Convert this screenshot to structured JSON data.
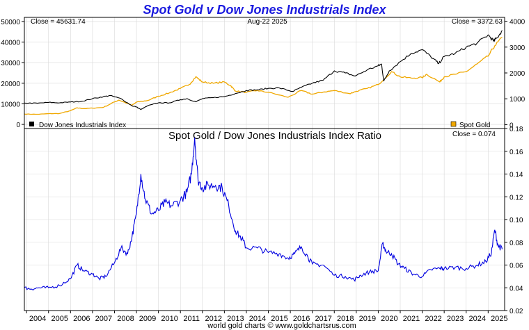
{
  "page_title": "Spot Gold v Dow Jones Industrials Index",
  "footer": "world gold charts © www.goldchartsrus.com",
  "colors": {
    "title": "#1a1adf",
    "dow": "#000000",
    "gold": "#f0a800",
    "ratio": "#0000e0",
    "grid": "#d8d8d8",
    "frame": "#000000"
  },
  "chart_data": [
    {
      "type": "line",
      "panel": "top",
      "title": "",
      "header_left": "Close = 45631.74",
      "header_center": "Aug-22  2025",
      "header_right": "Close = 3372.63",
      "x_tick_labels": [
        "2004",
        "2005",
        "2006",
        "2007",
        "2008",
        "2009",
        "2010",
        "2011",
        "2012",
        "2013",
        "2014",
        "2015",
        "2016",
        "2017",
        "2018",
        "2019",
        "2020",
        "2021",
        "2022",
        "2023",
        "2024",
        "2025"
      ],
      "xlim": [
        2003.9,
        2025.75
      ],
      "y_left": {
        "lim": [
          -2000,
          52000
        ],
        "ticks": [
          0,
          10000,
          20000,
          30000,
          40000,
          50000
        ],
        "tick_labels": [
          "0",
          "10000",
          "20000",
          "30000",
          "40000",
          "50000"
        ]
      },
      "y_right": {
        "lim": [
          -150,
          4150
        ],
        "ticks": [
          0,
          1000,
          2000,
          3000,
          4000
        ],
        "tick_labels": [
          "0",
          "1000",
          "2000",
          "3000",
          "4000"
        ]
      },
      "grid": true,
      "legend": [
        {
          "name": "Dow Jones Industrials Index",
          "position": "bottom-left"
        },
        {
          "name": "Spot Gold",
          "position": "bottom-right"
        }
      ],
      "series": [
        {
          "name": "Dow Jones Industrials Index",
          "axis": "left",
          "x": [
            2003.9,
            2004.5,
            2005.0,
            2005.5,
            2006.0,
            2006.5,
            2007.0,
            2007.5,
            2007.8,
            2008.3,
            2008.8,
            2009.0,
            2009.2,
            2009.5,
            2010.0,
            2010.5,
            2011.0,
            2011.3,
            2011.7,
            2012.0,
            2012.5,
            2013.0,
            2013.5,
            2014.0,
            2014.5,
            2015.0,
            2015.5,
            2016.1,
            2016.5,
            2017.0,
            2017.5,
            2018.0,
            2018.5,
            2018.95,
            2019.5,
            2020.0,
            2020.15,
            2020.25,
            2020.5,
            2021.0,
            2021.5,
            2022.0,
            2022.5,
            2022.75,
            2023.0,
            2023.5,
            2024.0,
            2024.5,
            2025.0,
            2025.25,
            2025.4,
            2025.64
          ],
          "values": [
            10400,
            10300,
            10700,
            10500,
            10900,
            11200,
            12500,
            13500,
            14000,
            12500,
            9000,
            8500,
            7200,
            9000,
            10500,
            10500,
            12000,
            12500,
            11000,
            12500,
            13000,
            13500,
            15000,
            16500,
            16800,
            17500,
            17700,
            16000,
            18000,
            20000,
            21500,
            26000,
            25000,
            23500,
            26500,
            28500,
            29300,
            21000,
            26000,
            30500,
            34500,
            36300,
            32000,
            29500,
            33000,
            34500,
            37500,
            39500,
            43500,
            40500,
            42000,
            45631.74
          ]
        },
        {
          "name": "Spot Gold",
          "axis": "right",
          "x": [
            2003.9,
            2004.5,
            2005.0,
            2005.5,
            2006.0,
            2006.3,
            2006.6,
            2007.0,
            2007.5,
            2008.0,
            2008.2,
            2008.8,
            2009.0,
            2009.5,
            2010.0,
            2010.5,
            2011.0,
            2011.4,
            2011.7,
            2012.0,
            2012.5,
            2013.0,
            2013.3,
            2013.5,
            2014.0,
            2014.5,
            2015.0,
            2015.9,
            2016.5,
            2017.0,
            2017.5,
            2018.0,
            2018.7,
            2019.0,
            2019.5,
            2020.0,
            2020.6,
            2021.0,
            2021.5,
            2022.0,
            2022.2,
            2022.8,
            2023.0,
            2023.5,
            2024.0,
            2024.5,
            2025.0,
            2025.3,
            2025.64
          ],
          "values": [
            410,
            400,
            425,
            430,
            540,
            650,
            620,
            640,
            670,
            880,
            950,
            750,
            870,
            930,
            1100,
            1230,
            1400,
            1550,
            1850,
            1650,
            1600,
            1650,
            1500,
            1300,
            1250,
            1320,
            1250,
            1060,
            1320,
            1180,
            1260,
            1320,
            1200,
            1290,
            1400,
            1550,
            2050,
            1850,
            1800,
            1820,
            1950,
            1650,
            1850,
            1950,
            2050,
            2350,
            2650,
            3050,
            3372.63
          ]
        }
      ]
    },
    {
      "type": "line",
      "panel": "bottom",
      "title": "Spot Gold  /  Dow Jones Industrials Index Ratio",
      "header_right": "Close = 0.074",
      "x_tick_labels": [
        "2004",
        "2005",
        "2006",
        "2007",
        "2008",
        "2009",
        "2010",
        "2011",
        "2012",
        "2013",
        "2014",
        "2015",
        "2016",
        "2017",
        "2018",
        "2019",
        "2020",
        "2021",
        "2022",
        "2023",
        "2024",
        "2025"
      ],
      "xlim": [
        2003.9,
        2025.75
      ],
      "y_right": {
        "lim": [
          0.02,
          0.18
        ],
        "ticks": [
          0.02,
          0.04,
          0.06,
          0.08,
          0.1,
          0.12,
          0.14,
          0.16,
          0.18
        ],
        "tick_labels": [
          "0.02",
          "0.04",
          "0.06",
          "0.08",
          "0.10",
          "0.12",
          "0.14",
          "0.16",
          "0.18"
        ]
      },
      "grid": true,
      "series": [
        {
          "name": "Spot Gold / Dow Jones Industrials Index Ratio",
          "x": [
            2003.9,
            2004.2,
            2004.6,
            2005.0,
            2005.5,
            2006.0,
            2006.3,
            2006.6,
            2007.0,
            2007.3,
            2007.6,
            2008.0,
            2008.3,
            2008.6,
            2008.8,
            2009.0,
            2009.2,
            2009.4,
            2009.7,
            2010.0,
            2010.3,
            2010.6,
            2011.0,
            2011.3,
            2011.5,
            2011.65,
            2011.8,
            2012.0,
            2012.3,
            2012.6,
            2012.9,
            2013.2,
            2013.5,
            2013.8,
            2014.0,
            2014.5,
            2015.0,
            2015.5,
            2015.9,
            2016.2,
            2016.5,
            2016.8,
            2017.0,
            2017.5,
            2018.0,
            2018.5,
            2018.9,
            2019.2,
            2019.6,
            2020.0,
            2020.2,
            2020.35,
            2020.6,
            2020.9,
            2021.2,
            2021.6,
            2022.0,
            2022.4,
            2022.8,
            2023.0,
            2023.5,
            2024.0,
            2024.5,
            2024.9,
            2025.15,
            2025.3,
            2025.45,
            2025.64
          ],
          "values": [
            0.04,
            0.039,
            0.04,
            0.04,
            0.042,
            0.048,
            0.06,
            0.055,
            0.052,
            0.048,
            0.05,
            0.062,
            0.075,
            0.07,
            0.085,
            0.105,
            0.14,
            0.118,
            0.105,
            0.108,
            0.115,
            0.112,
            0.117,
            0.124,
            0.14,
            0.172,
            0.135,
            0.128,
            0.13,
            0.13,
            0.128,
            0.112,
            0.09,
            0.083,
            0.075,
            0.075,
            0.071,
            0.07,
            0.066,
            0.07,
            0.076,
            0.067,
            0.061,
            0.06,
            0.051,
            0.05,
            0.047,
            0.051,
            0.054,
            0.055,
            0.079,
            0.072,
            0.07,
            0.061,
            0.057,
            0.052,
            0.05,
            0.056,
            0.057,
            0.057,
            0.058,
            0.057,
            0.06,
            0.063,
            0.071,
            0.091,
            0.077,
            0.074
          ]
        }
      ]
    }
  ]
}
